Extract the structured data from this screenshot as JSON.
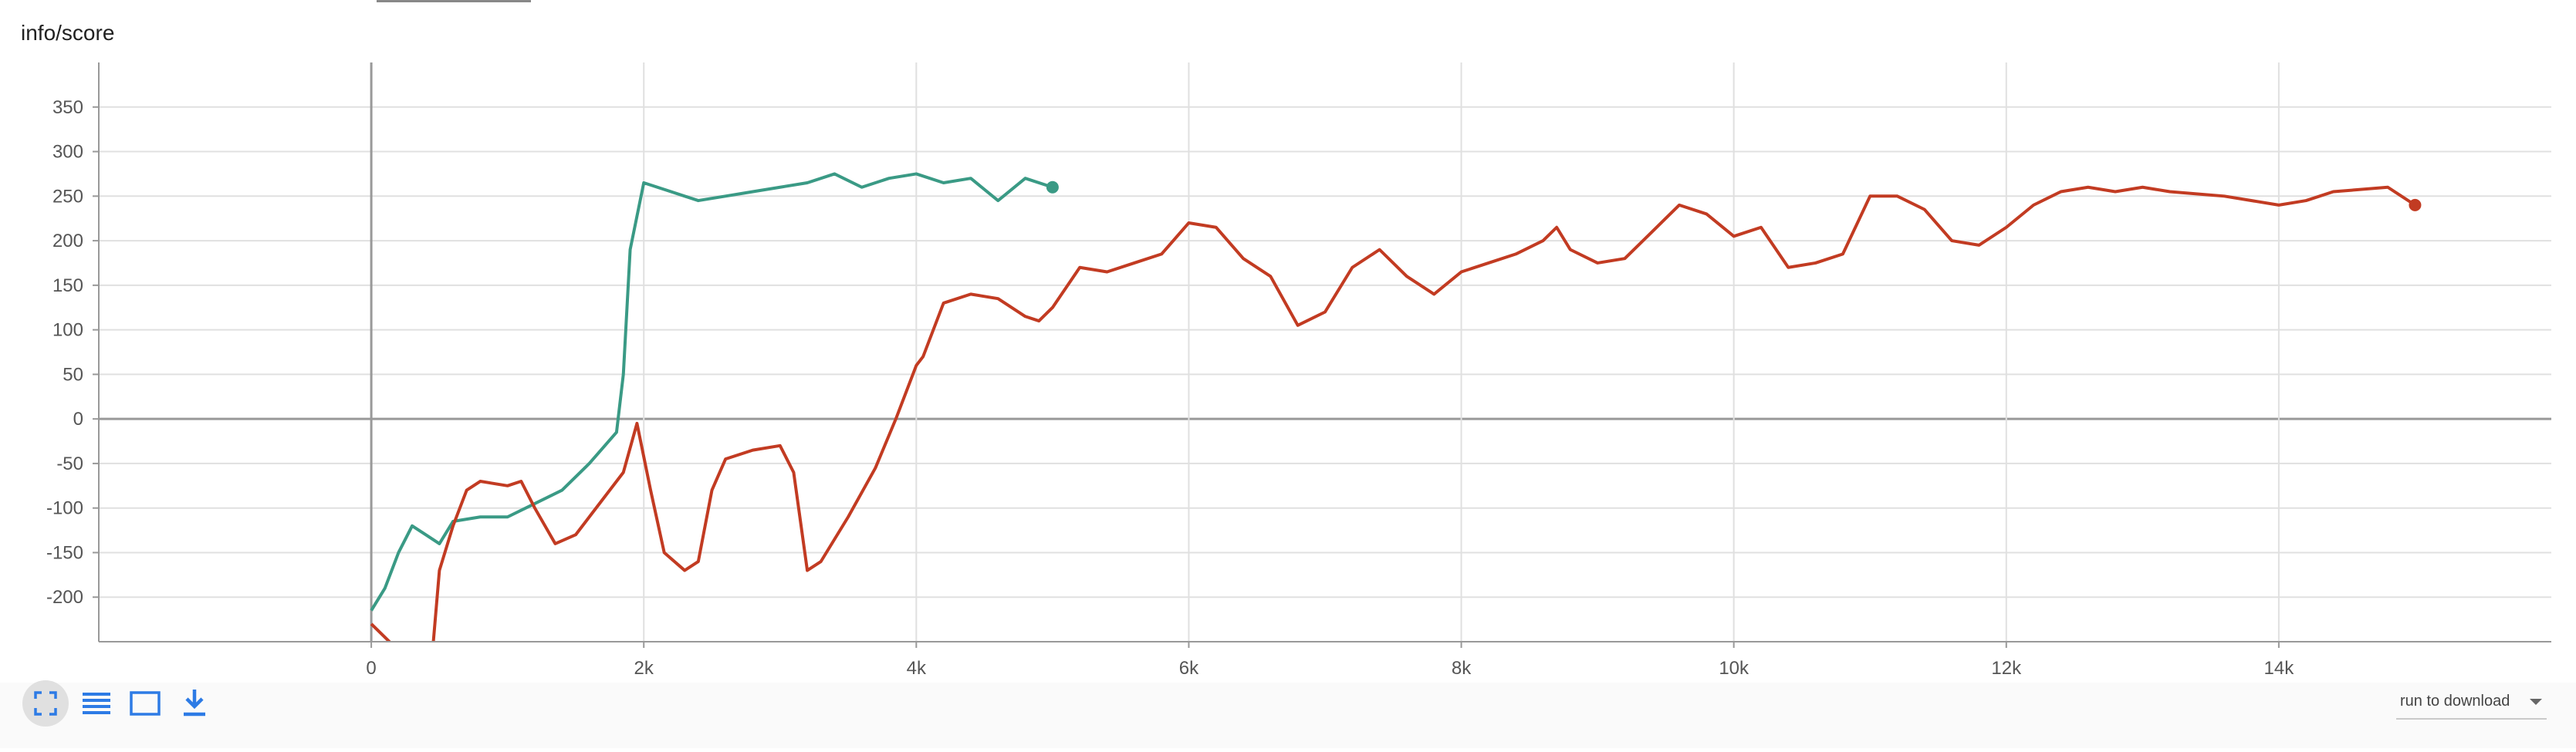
{
  "chart_data": {
    "type": "line",
    "title": "info/score",
    "xlim": [
      -2000,
      16000
    ],
    "xticks": [
      0,
      {
        "value": 2000,
        "label": "2k"
      },
      {
        "value": 4000,
        "label": "4k"
      },
      {
        "value": 6000,
        "label": "6k"
      },
      {
        "value": 8000,
        "label": "8k"
      },
      {
        "value": 10000,
        "label": "10k"
      },
      {
        "value": 12000,
        "label": "12k"
      },
      {
        "value": 14000,
        "label": "14k"
      }
    ],
    "ylim": [
      -250,
      400
    ],
    "yticks": [
      -200,
      -150,
      -100,
      -50,
      0,
      50,
      100,
      150,
      200,
      250,
      300,
      350
    ],
    "grid": true,
    "series": [
      {
        "color": "#3a9a85",
        "x": [
          0,
          100,
          200,
          300,
          400,
          500,
          600,
          800,
          1000,
          1200,
          1400,
          1600,
          1800,
          1850,
          1900,
          2000,
          2200,
          2400,
          2600,
          2800,
          3000,
          3200,
          3400,
          3600,
          3800,
          4000,
          4200,
          4400,
          4600,
          4800,
          5000
        ],
        "values": [
          -215,
          -190,
          -150,
          -120,
          -130,
          -140,
          -115,
          -110,
          -110,
          -95,
          -80,
          -50,
          -15,
          50,
          190,
          265,
          255,
          245,
          250,
          255,
          260,
          265,
          275,
          260,
          270,
          275,
          265,
          270,
          245,
          270,
          260
        ]
      },
      {
        "color": "#c23b22",
        "x": [
          0,
          200,
          300,
          450,
          500,
          600,
          700,
          800,
          1000,
          1100,
          1200,
          1350,
          1500,
          1700,
          1850,
          1950,
          2050,
          2150,
          2300,
          2400,
          2500,
          2600,
          2800,
          3000,
          3100,
          3200,
          3300,
          3500,
          3700,
          3850,
          4000,
          4050,
          4200,
          4400,
          4600,
          4800,
          4900,
          5000,
          5200,
          5400,
          5600,
          5800,
          6000,
          6200,
          6400,
          6600,
          6800,
          7000,
          7200,
          7400,
          7600,
          7800,
          8000,
          8200,
          8400,
          8600,
          8700,
          8800,
          9000,
          9200,
          9400,
          9600,
          9800,
          10000,
          10200,
          10400,
          10600,
          10800,
          11000,
          11200,
          11400,
          11600,
          11800,
          12000,
          12200,
          12400,
          12600,
          12800,
          13000,
          13200,
          13600,
          14000,
          14200,
          14400,
          14800,
          15000
        ],
        "values": [
          -230,
          -260,
          -280,
          -260,
          -170,
          -120,
          -80,
          -70,
          -75,
          -70,
          -100,
          -140,
          -130,
          -90,
          -60,
          -5,
          -80,
          -150,
          -170,
          -160,
          -80,
          -45,
          -35,
          -30,
          -60,
          -170,
          -160,
          -110,
          -55,
          0,
          60,
          70,
          130,
          140,
          135,
          115,
          110,
          125,
          170,
          165,
          175,
          185,
          220,
          215,
          180,
          160,
          105,
          120,
          170,
          190,
          160,
          140,
          165,
          175,
          185,
          200,
          215,
          190,
          175,
          180,
          210,
          240,
          230,
          205,
          215,
          170,
          175,
          185,
          250,
          250,
          235,
          200,
          195,
          215,
          240,
          255,
          260,
          255,
          260,
          255,
          250,
          240,
          245,
          255,
          260,
          240
        ]
      }
    ]
  },
  "ui": {
    "run_selector": "run to download"
  }
}
